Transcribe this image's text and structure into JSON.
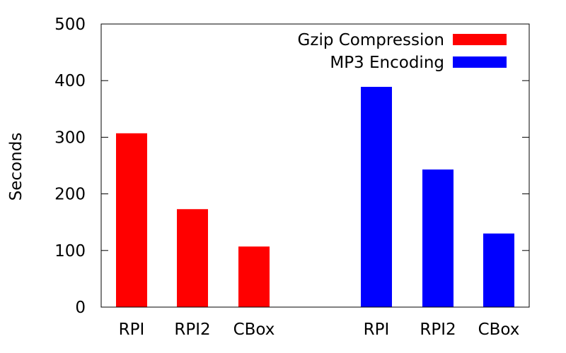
{
  "chart_data": {
    "type": "bar",
    "title": "",
    "xlabel": "",
    "ylabel": "Seconds",
    "ylim": [
      0,
      500
    ],
    "yticks": [
      0,
      100,
      200,
      300,
      400,
      500
    ],
    "grid": false,
    "legend_position": "top-right",
    "groups": [
      {
        "series": "Gzip Compression",
        "categories": [
          "RPI",
          "RPI2",
          "CBox"
        ],
        "values": [
          307,
          173,
          107
        ]
      },
      {
        "series": "MP3 Encoding",
        "categories": [
          "RPI",
          "RPI2",
          "CBox"
        ],
        "values": [
          389,
          243,
          130
        ]
      }
    ],
    "series": [
      {
        "name": "Gzip Compression",
        "color": "#ff0000"
      },
      {
        "name": "MP3 Encoding",
        "color": "#0000ff"
      }
    ]
  }
}
